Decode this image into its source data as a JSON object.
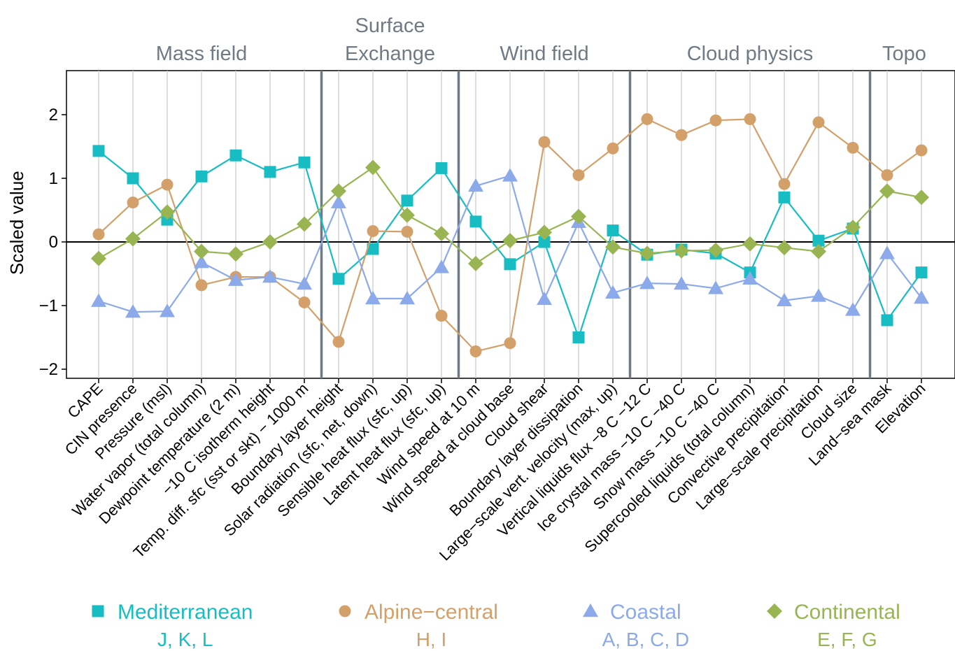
{
  "chart_data": {
    "type": "line",
    "ylabel": "Scaled value",
    "xlabel": "",
    "ylim": [
      -2.1,
      2.65
    ],
    "yticks": [
      -2,
      -1,
      0,
      1,
      2
    ],
    "ytick_labels": [
      "−2",
      "−1",
      "0",
      "1",
      "2"
    ],
    "grid": "vertical",
    "legend_position": "bottom",
    "categories": [
      "CAPE",
      "CIN presence",
      "Pressure (msl)",
      "Water vapor (total column)",
      "Dewpoint temperature (2 m)",
      "−10 C isotherm height",
      "Temp. diff. sfc (sst or skt) − 1000 m",
      "Boundary layer height",
      "Solar radiation (sfc, net, down)",
      "Sensible heat flux (sfc, up)",
      "Latent heat flux (sfc, up)",
      "Wind speed at 10 m",
      "Wind speed at cloud base",
      "Cloud shear",
      "Boundary layer dissipation",
      "Large−scale vert. velocity (max, up)",
      "Vertical liquids flux −8 C −12 C",
      "Ice crystal mass −10 C −40 C",
      "Snow mass −10 C −40 C",
      "Supercooled liquids (total column)",
      "Convective precipitation",
      "Large−scale precipitation",
      "Cloud size",
      "Land−sea mask",
      "Elevation"
    ],
    "groups": [
      {
        "label": "Mass field",
        "start": 0,
        "end": 6
      },
      {
        "label": "Surface\nExchange",
        "start": 7,
        "end": 10
      },
      {
        "label": "Wind field",
        "start": 11,
        "end": 15
      },
      {
        "label": "Cloud physics",
        "start": 16,
        "end": 22
      },
      {
        "label": "Topo",
        "start": 23,
        "end": 24
      }
    ],
    "series": [
      {
        "name": "Mediterranean",
        "subtitle": "J, K, L",
        "color": "#17bdc2",
        "marker": "square",
        "values": [
          1.43,
          1.0,
          0.35,
          1.03,
          1.36,
          1.1,
          1.25,
          -0.58,
          -0.11,
          0.65,
          1.16,
          0.32,
          -0.35,
          0.0,
          -1.5,
          0.18,
          -0.2,
          -0.12,
          -0.18,
          -0.48,
          0.7,
          0.02,
          0.21,
          -1.23,
          -0.48
        ]
      },
      {
        "name": "Alpine−central",
        "subtitle": "H, I",
        "color": "#d4a06a",
        "marker": "circle",
        "values": [
          0.12,
          0.62,
          0.9,
          -0.68,
          -0.55,
          -0.55,
          -0.95,
          -1.57,
          0.17,
          0.16,
          -1.16,
          -1.72,
          -1.59,
          1.57,
          1.05,
          1.47,
          1.93,
          1.68,
          1.91,
          1.93,
          0.91,
          1.88,
          1.48,
          1.05,
          1.44
        ]
      },
      {
        "name": "Coastal",
        "subtitle": "A, B, C, D",
        "color": "#8caaea",
        "marker": "triangle",
        "values": [
          -0.93,
          -1.1,
          -1.09,
          -0.32,
          -0.6,
          -0.55,
          -0.66,
          0.62,
          -0.89,
          -0.89,
          -0.4,
          0.88,
          1.04,
          -0.9,
          0.31,
          -0.8,
          -0.65,
          -0.66,
          -0.73,
          -0.58,
          -0.92,
          -0.85,
          -1.07,
          -0.18,
          -0.88
        ]
      },
      {
        "name": "Continental",
        "subtitle": "E, F, G",
        "color": "#98b552",
        "marker": "diamond",
        "values": [
          -0.26,
          0.05,
          0.47,
          -0.15,
          -0.19,
          0.0,
          0.28,
          0.8,
          1.17,
          0.42,
          0.13,
          -0.34,
          0.02,
          0.15,
          0.4,
          -0.08,
          -0.18,
          -0.14,
          -0.13,
          -0.03,
          -0.09,
          -0.15,
          0.23,
          0.8,
          0.7
        ]
      }
    ]
  }
}
